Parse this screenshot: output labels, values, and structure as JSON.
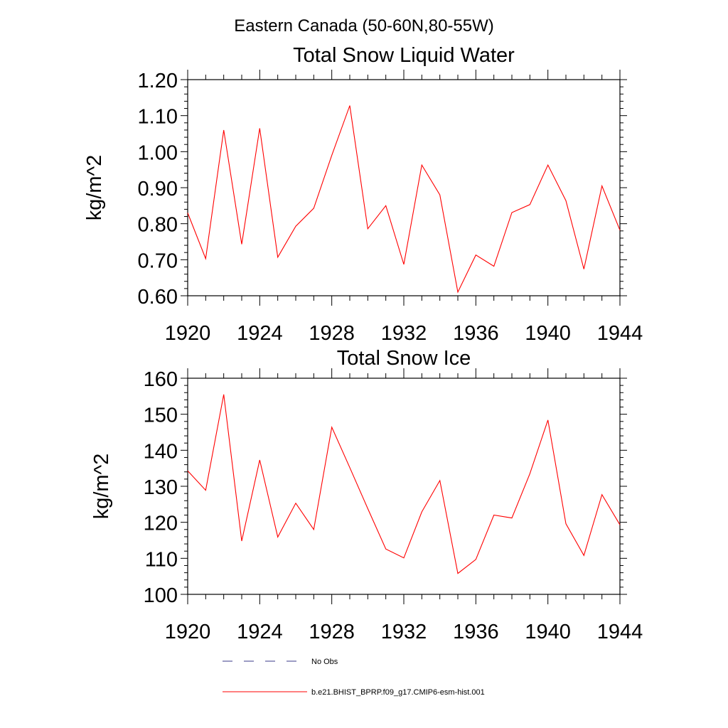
{
  "page": {
    "supertitle": "Eastern Canada (50-60N,80-55W)"
  },
  "colors": {
    "model_line": "#ff0000",
    "obs_line": "#3a3a8a",
    "axis": "#000000"
  },
  "chart_data": [
    {
      "type": "line",
      "title": "Total Snow Liquid Water",
      "xlabel": "",
      "ylabel": "kg/m^2",
      "xlim": [
        1920,
        1944
      ],
      "ylim": [
        0.6,
        1.2
      ],
      "xticks": [
        1920,
        1924,
        1928,
        1932,
        1936,
        1940,
        1944
      ],
      "yticks": [
        0.6,
        0.7,
        0.8,
        0.9,
        1.0,
        1.1,
        1.2
      ],
      "ytick_labels": [
        "0.60",
        "0.70",
        "0.80",
        "0.90",
        "1.00",
        "1.10",
        "1.20"
      ],
      "x": [
        1920,
        1921,
        1922,
        1923,
        1924,
        1925,
        1926,
        1927,
        1928,
        1929,
        1930,
        1931,
        1932,
        1933,
        1934,
        1935,
        1936,
        1937,
        1938,
        1939,
        1940,
        1941,
        1942,
        1943,
        1944
      ],
      "series": [
        {
          "name": "b.e21.BHIST_BPRP.f09_g17.CMIP6-esm-hist.001",
          "values": [
            0.83,
            0.703,
            1.06,
            0.743,
            1.065,
            0.707,
            0.793,
            0.843,
            0.99,
            1.128,
            0.786,
            0.85,
            0.687,
            0.963,
            0.88,
            0.61,
            0.713,
            0.682,
            0.831,
            0.853,
            0.963,
            0.864,
            0.674,
            0.905,
            0.782
          ]
        }
      ]
    },
    {
      "type": "line",
      "title": "Total Snow Ice",
      "xlabel": "",
      "ylabel": "kg/m^2",
      "xlim": [
        1920,
        1944
      ],
      "ylim": [
        100,
        160
      ],
      "xticks": [
        1920,
        1924,
        1928,
        1932,
        1936,
        1940,
        1944
      ],
      "yticks": [
        100,
        110,
        120,
        130,
        140,
        150,
        160
      ],
      "ytick_labels": [
        "100",
        "110",
        "120",
        "130",
        "140",
        "150",
        "160"
      ],
      "x": [
        1920,
        1921,
        1922,
        1923,
        1924,
        1925,
        1926,
        1927,
        1928,
        1929,
        1930,
        1931,
        1932,
        1933,
        1934,
        1935,
        1936,
        1937,
        1938,
        1939,
        1940,
        1941,
        1942,
        1943,
        1944
      ],
      "series": [
        {
          "name": "b.e21.BHIST_BPRP.f09_g17.CMIP6-esm-hist.001",
          "values": [
            134.3,
            128.9,
            155.5,
            114.8,
            137.3,
            115.9,
            125.3,
            118.0,
            146.4,
            135.2,
            123.8,
            112.6,
            110.1,
            122.9,
            131.6,
            105.8,
            109.7,
            122.0,
            121.2,
            133.5,
            148.4,
            119.6,
            110.8,
            127.7,
            119.3
          ]
        }
      ]
    }
  ],
  "legend": {
    "entries": [
      {
        "label": "No Obs",
        "style": "dashed",
        "color": "#3a3a8a"
      },
      {
        "label": "b.e21.BHIST_BPRP.f09_g17.CMIP6-esm-hist.001",
        "style": "solid",
        "color": "#ff0000"
      }
    ]
  }
}
